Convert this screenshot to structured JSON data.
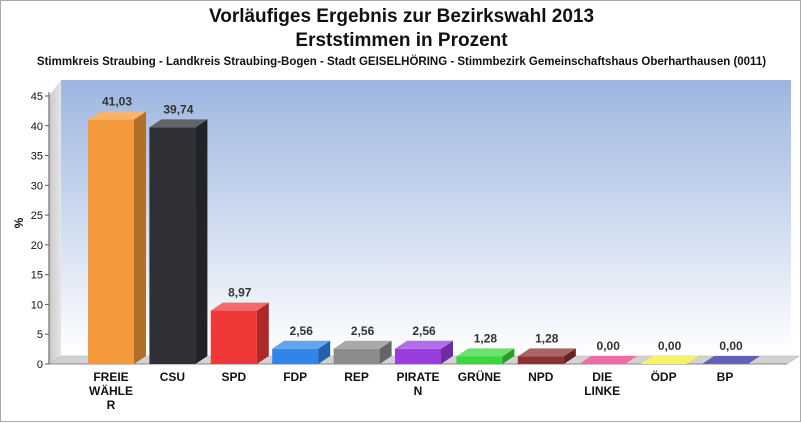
{
  "chart_data": {
    "type": "bar",
    "title_line1": "Vorläufiges Ergebnis zur Bezirkswahl 2013",
    "title_line2": "Erststimmen in Prozent",
    "subtitle": "Stimmkreis Straubing - Landkreis Straubing-Bogen - Stadt GEISELHÖRING - Stimmbezirk Gemeinschaftshaus Oberharthausen (0011)",
    "xlabel": "",
    "ylabel": "%",
    "ylim": [
      0,
      45
    ],
    "yticks": [
      0,
      5,
      10,
      15,
      20,
      25,
      30,
      35,
      40,
      45
    ],
    "grid": false,
    "categories": [
      [
        "FREIE",
        "WÄHLE",
        "R"
      ],
      [
        "CSU"
      ],
      [
        "SPD"
      ],
      [
        "FDP"
      ],
      [
        "REP"
      ],
      [
        "PIRATE",
        "N"
      ],
      [
        "GRÜNE"
      ],
      [
        "NPD"
      ],
      [
        "DIE",
        "LINKE"
      ],
      [
        "ÖDP"
      ],
      [
        "BP"
      ]
    ],
    "values": [
      41.03,
      39.74,
      8.97,
      2.56,
      2.56,
      2.56,
      1.28,
      1.28,
      0.0,
      0.0,
      0.0
    ],
    "value_labels": [
      "41,03",
      "39,74",
      "8,97",
      "2,56",
      "2,56",
      "2,56",
      "1,28",
      "1,28",
      "0,00",
      "0,00",
      "0,00"
    ],
    "colors": [
      "#f59a3c",
      "#2e3036",
      "#f03838",
      "#2f86e8",
      "#8c8c8c",
      "#9a3ce0",
      "#3ad83a",
      "#8c3232",
      "#e8388c",
      "#f0f030",
      "#2c2c9e"
    ]
  }
}
